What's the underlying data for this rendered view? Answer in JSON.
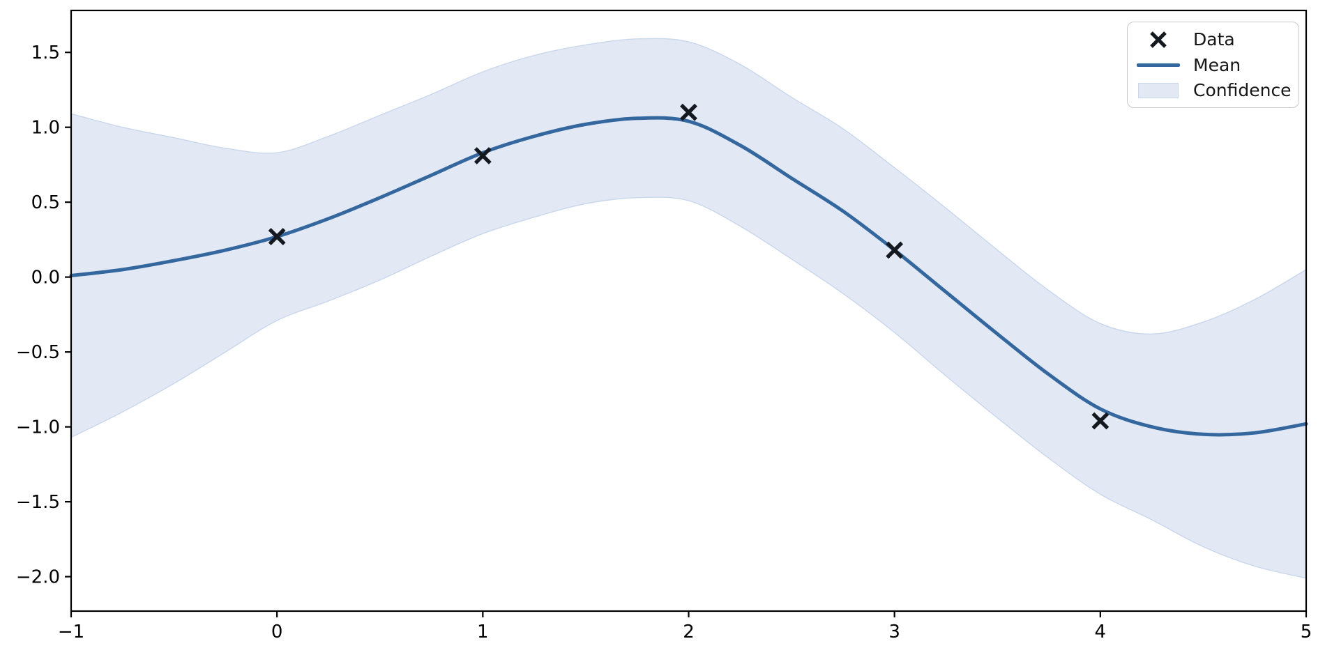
{
  "chart_data": {
    "type": "line",
    "title": "",
    "xlabel": "",
    "ylabel": "",
    "xlim": [
      -1,
      5
    ],
    "ylim": [
      -2.23,
      1.78
    ],
    "grid": false,
    "x_ticks": {
      "values": [
        -1,
        0,
        1,
        2,
        3,
        4,
        5
      ],
      "labels": [
        "−1",
        "0",
        "1",
        "2",
        "3",
        "4",
        "5"
      ]
    },
    "y_ticks": {
      "values": [
        1.5,
        1.0,
        0.5,
        0.0,
        -0.5,
        -1.0,
        -1.5,
        -2.0
      ],
      "labels": [
        "1.5",
        "1.0",
        "0.5",
        "0.0",
        "−0.5",
        "−1.0",
        "−1.5",
        "−2.0"
      ]
    },
    "legend": {
      "position": "upper right",
      "items": [
        {
          "label": "Data",
          "swatch": "x-marker"
        },
        {
          "label": "Mean",
          "swatch": "line"
        },
        {
          "label": "Confidence",
          "swatch": "patch"
        }
      ]
    },
    "x_grid": [
      -1.0,
      -0.75,
      -0.5,
      -0.25,
      0.0,
      0.25,
      0.5,
      0.75,
      1.0,
      1.25,
      1.5,
      1.75,
      2.0,
      2.25,
      2.5,
      2.75,
      3.0,
      3.25,
      3.5,
      3.75,
      4.0,
      4.25,
      4.5,
      4.75,
      5.0
    ],
    "series": {
      "data_points": {
        "name": "Data",
        "marker": "x",
        "color": "#14181f",
        "points": [
          [
            0,
            0.27
          ],
          [
            1,
            0.81
          ],
          [
            2,
            1.1
          ],
          [
            3,
            0.18
          ],
          [
            4,
            -0.96
          ]
        ]
      },
      "mean": {
        "name": "Mean",
        "color": "#34679e",
        "y": [
          0.01,
          0.05,
          0.11,
          0.18,
          0.27,
          0.39,
          0.53,
          0.68,
          0.83,
          0.94,
          1.02,
          1.06,
          1.04,
          0.88,
          0.66,
          0.44,
          0.18,
          -0.1,
          -0.38,
          -0.65,
          -0.88,
          -1.0,
          -1.05,
          -1.04,
          -0.98
        ]
      },
      "confidence": {
        "name": "Confidence",
        "fill": "#e2e8f4",
        "edge": "#c9d7ec",
        "upper": [
          1.09,
          1.0,
          0.93,
          0.86,
          0.83,
          0.94,
          1.08,
          1.22,
          1.37,
          1.48,
          1.55,
          1.59,
          1.57,
          1.42,
          1.2,
          0.99,
          0.73,
          0.46,
          0.18,
          -0.09,
          -0.31,
          -0.38,
          -0.3,
          -0.15,
          0.05
        ],
        "lower": [
          -1.07,
          -0.9,
          -0.71,
          -0.5,
          -0.29,
          -0.16,
          -0.02,
          0.14,
          0.29,
          0.4,
          0.49,
          0.53,
          0.51,
          0.34,
          0.12,
          -0.11,
          -0.37,
          -0.66,
          -0.94,
          -1.21,
          -1.45,
          -1.62,
          -1.8,
          -1.93,
          -2.01
        ]
      }
    },
    "axes_color": "#000000"
  }
}
